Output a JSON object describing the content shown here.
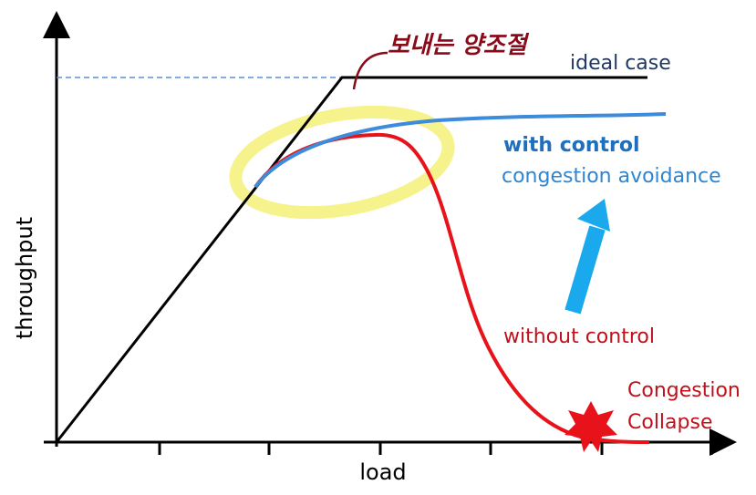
{
  "annotation": "보내는 양조절",
  "labels": {
    "ideal": "ideal case",
    "with_control": "with control",
    "avoidance": "congestion avoidance",
    "without_control": "without control",
    "collapse_1": "Congestion",
    "collapse_2": "Collapse"
  },
  "axes": {
    "y_label": "throughput",
    "x_label": "load"
  }
}
